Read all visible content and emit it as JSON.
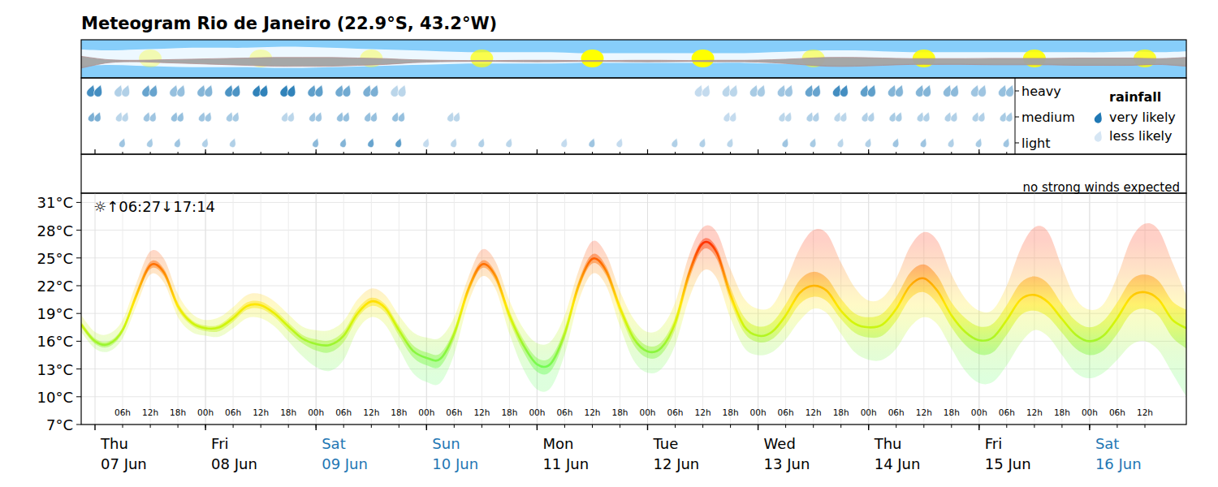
{
  "chart_data": {
    "type": "meteogram",
    "title": "Meteogram Rio de Janeiro (22.9°S, 43.2°W)",
    "xlim": [
      -3,
      237
    ],
    "xticks": [
      {
        "value": 6,
        "label": "06h"
      },
      {
        "value": 12,
        "label": "12h"
      },
      {
        "value": 18,
        "label": "18h"
      },
      {
        "value": 24,
        "label": "00h"
      },
      {
        "value": 30,
        "label": "06h"
      },
      {
        "value": 36,
        "label": "12h"
      },
      {
        "value": 42,
        "label": "18h"
      },
      {
        "value": 48,
        "label": "00h"
      },
      {
        "value": 54,
        "label": "06h"
      },
      {
        "value": 60,
        "label": "12h"
      },
      {
        "value": 66,
        "label": "18h"
      },
      {
        "value": 72,
        "label": "00h"
      },
      {
        "value": 78,
        "label": "06h"
      },
      {
        "value": 84,
        "label": "12h"
      },
      {
        "value": 90,
        "label": "18h"
      },
      {
        "value": 96,
        "label": "00h"
      },
      {
        "value": 102,
        "label": "06h"
      },
      {
        "value": 108,
        "label": "12h"
      },
      {
        "value": 114,
        "label": "18h"
      },
      {
        "value": 120,
        "label": "00h"
      },
      {
        "value": 126,
        "label": "06h"
      },
      {
        "value": 132,
        "label": "12h"
      },
      {
        "value": 138,
        "label": "18h"
      },
      {
        "value": 144,
        "label": "00h"
      },
      {
        "value": 150,
        "label": "06h"
      },
      {
        "value": 156,
        "label": "12h"
      },
      {
        "value": 162,
        "label": "18h"
      },
      {
        "value": 168,
        "label": "00h"
      },
      {
        "value": 174,
        "label": "06h"
      },
      {
        "value": 180,
        "label": "12h"
      },
      {
        "value": 186,
        "label": "18h"
      },
      {
        "value": 192,
        "label": "00h"
      },
      {
        "value": 198,
        "label": "06h"
      },
      {
        "value": 204,
        "label": "12h"
      },
      {
        "value": 210,
        "label": "18h"
      },
      {
        "value": 216,
        "label": "00h"
      },
      {
        "value": 222,
        "label": "06h"
      },
      {
        "value": 228,
        "label": "12h"
      }
    ],
    "days": [
      {
        "value": 0,
        "weekday": "Thu",
        "date": "07 Jun",
        "color": "#000000"
      },
      {
        "value": 24,
        "weekday": "Fri",
        "date": "08 Jun",
        "color": "#000000"
      },
      {
        "value": 48,
        "weekday": "Sat",
        "date": "09 Jun",
        "color": "#1f77b4"
      },
      {
        "value": 72,
        "weekday": "Sun",
        "date": "10 Jun",
        "color": "#1f77b4"
      },
      {
        "value": 96,
        "weekday": "Mon",
        "date": "11 Jun",
        "color": "#000000"
      },
      {
        "value": 120,
        "weekday": "Tue",
        "date": "12 Jun",
        "color": "#000000"
      },
      {
        "value": 144,
        "weekday": "Wed",
        "date": "13 Jun",
        "color": "#000000"
      },
      {
        "value": 168,
        "weekday": "Thu",
        "date": "14 Jun",
        "color": "#000000"
      },
      {
        "value": 192,
        "weekday": "Fri",
        "date": "15 Jun",
        "color": "#000000"
      },
      {
        "value": 216,
        "weekday": "Sat",
        "date": "16 Jun",
        "color": "#1f77b4"
      }
    ],
    "clouds": {
      "sky_color": "#87cefa",
      "cloud_color": "#ffffff",
      "low_cloud_color": "#a3a3a3",
      "x": [
        -3,
        3,
        9,
        15,
        21,
        27,
        33,
        39,
        45,
        51,
        57,
        63,
        69,
        75,
        81,
        87,
        93,
        99,
        105,
        111,
        117,
        123,
        129,
        135,
        141,
        147,
        153,
        159,
        165,
        171,
        177,
        183,
        189,
        195,
        201,
        207,
        213,
        219,
        225,
        231,
        237
      ],
      "cloud_cover": [
        0.5,
        0.45,
        0.5,
        0.55,
        0.6,
        0.6,
        0.6,
        0.65,
        0.65,
        0.6,
        0.55,
        0.5,
        0.45,
        0.4,
        0.35,
        0.35,
        0.35,
        0.35,
        0.3,
        0.3,
        0.3,
        0.3,
        0.3,
        0.3,
        0.3,
        0.35,
        0.4,
        0.45,
        0.45,
        0.4,
        0.35,
        0.35,
        0.35,
        0.35,
        0.35,
        0.35,
        0.35,
        0.35,
        0.4,
        0.35,
        0.4
      ],
      "low_cloud": [
        0.4,
        0.1,
        0.05,
        0.1,
        0.15,
        0.2,
        0.25,
        0.3,
        0.3,
        0.3,
        0.25,
        0.2,
        0.1,
        0.05,
        0.03,
        0.03,
        0.05,
        0.05,
        0.03,
        0.03,
        0.05,
        0.05,
        0.03,
        0.05,
        0.05,
        0.1,
        0.2,
        0.3,
        0.3,
        0.25,
        0.2,
        0.2,
        0.2,
        0.22,
        0.22,
        0.22,
        0.25,
        0.25,
        0.25,
        0.2,
        0.3
      ],
      "sun": {
        "color": "#ffff00",
        "x": [
          12,
          36,
          60,
          84,
          108,
          132,
          156,
          180,
          204,
          228
        ],
        "visibility": [
          0.3,
          0.3,
          0.35,
          0.7,
          1,
          1,
          0.5,
          0.9,
          0.9,
          0.8
        ]
      }
    },
    "rainfall": {
      "title": "rainfall",
      "x": [
        0,
        6,
        12,
        18,
        24,
        30,
        36,
        42,
        48,
        54,
        60,
        66,
        72,
        78,
        84,
        90,
        96,
        102,
        108,
        114,
        120,
        126,
        132,
        138,
        144,
        150,
        156,
        162,
        168,
        174,
        180,
        186,
        192,
        198
      ],
      "rows": [
        {
          "name": "heavy",
          "values": [
            0.8,
            0.2,
            0.6,
            0.35,
            0.45,
            0.75,
            0.9,
            0.9,
            0.65,
            0.55,
            0.5,
            0.15,
            0,
            0,
            0,
            0,
            0,
            0,
            0,
            0,
            0,
            0,
            0.1,
            0.15,
            0.25,
            0.3,
            0.6,
            0.8,
            0.65,
            0.45,
            0.45,
            0.4,
            0.3,
            0.35
          ]
        },
        {
          "name": "medium",
          "values": [
            0.5,
            0.15,
            0.3,
            0.35,
            0.3,
            0.25,
            0,
            0.15,
            0.3,
            0.35,
            0.35,
            0.35,
            0,
            0.15,
            0,
            0,
            0,
            0,
            0,
            0,
            0,
            0,
            0,
            0.1,
            0,
            0.15,
            0.2,
            0.15,
            0.2,
            0.25,
            0.2,
            0.2,
            0.2,
            0.25
          ]
        },
        {
          "name": "light",
          "values": [
            0,
            0.3,
            0.25,
            0.3,
            0.2,
            0.2,
            0,
            0,
            0.4,
            0.45,
            0.6,
            0.65,
            0.1,
            0.15,
            0.2,
            0.15,
            0,
            0.1,
            0.3,
            0.1,
            0,
            0.2,
            0.2,
            0.15,
            0,
            0.3,
            0.25,
            0.15,
            0.2,
            0.3,
            0.3,
            0.2,
            0.25,
            0.3
          ]
        }
      ],
      "legend": [
        {
          "label": "very likely",
          "color": "#1f78b4"
        },
        {
          "label": "less likely",
          "color": "#d6e6f4"
        }
      ]
    },
    "wind": {
      "text": "no strong winds expected"
    },
    "temperature": {
      "sun_times": "☼↑06:27↓17:14",
      "ylim": [
        7,
        32
      ],
      "yticks": [
        {
          "value": 7,
          "label": "7°C"
        },
        {
          "value": 10,
          "label": "10°C"
        },
        {
          "value": 13,
          "label": "13°C"
        },
        {
          "value": 16,
          "label": "16°C"
        },
        {
          "value": 19,
          "label": "19°C"
        },
        {
          "value": 22,
          "label": "22°C"
        },
        {
          "value": 25,
          "label": "25°C"
        },
        {
          "value": 28,
          "label": "28°C"
        },
        {
          "value": 31,
          "label": "31°C"
        }
      ],
      "grid": true,
      "color_stops": [
        {
          "value": 12,
          "color": "#66ff66"
        },
        {
          "value": 15,
          "color": "#8cf53c"
        },
        {
          "value": 18,
          "color": "#d4f50a"
        },
        {
          "value": 20,
          "color": "#ffe600"
        },
        {
          "value": 22,
          "color": "#ffb400"
        },
        {
          "value": 24,
          "color": "#ff7800"
        },
        {
          "value": 27,
          "color": "#ff2a00"
        }
      ],
      "x": [
        -3,
        0,
        3,
        6,
        9,
        12,
        15,
        18,
        21,
        24,
        27,
        30,
        33,
        36,
        39,
        42,
        45,
        48,
        51,
        54,
        57,
        60,
        63,
        66,
        69,
        72,
        75,
        78,
        81,
        84,
        87,
        90,
        93,
        96,
        99,
        102,
        105,
        108,
        111,
        114,
        117,
        120,
        123,
        126,
        129,
        132,
        135,
        138,
        141,
        144,
        147,
        150,
        153,
        156,
        159,
        162,
        165,
        168,
        171,
        174,
        177,
        180,
        183,
        186,
        189,
        192,
        195,
        198,
        201,
        204,
        207,
        210,
        213,
        216,
        219,
        222,
        225,
        228,
        231,
        234,
        237
      ],
      "values": [
        17.8,
        16.0,
        15.7,
        17.2,
        21.0,
        24.2,
        23.4,
        19.8,
        18.0,
        17.4,
        17.5,
        18.5,
        19.8,
        19.9,
        19.0,
        17.6,
        16.3,
        15.7,
        15.6,
        16.6,
        19.0,
        20.3,
        19.6,
        17.2,
        15.0,
        14.2,
        14.1,
        16.8,
        21.5,
        24.3,
        23.0,
        18.8,
        15.6,
        13.5,
        13.6,
        16.8,
        22.0,
        24.9,
        23.6,
        19.6,
        16.3,
        14.9,
        15.3,
        18.0,
        23.3,
        26.6,
        25.6,
        21.0,
        17.6,
        16.6,
        17.0,
        18.8,
        21.2,
        22.0,
        21.4,
        19.3,
        17.9,
        17.5,
        17.8,
        19.5,
        22.0,
        22.8,
        21.4,
        18.8,
        17.0,
        16.1,
        16.4,
        18.3,
        20.5,
        21.0,
        20.2,
        18.4,
        16.7,
        16.0,
        16.6,
        18.5,
        20.8,
        21.3,
        20.5,
        18.3,
        17.4
      ],
      "band_inner": {
        "low": [
          17.5,
          15.7,
          15.4,
          16.9,
          20.6,
          23.8,
          23.0,
          19.4,
          17.7,
          17.1,
          17.1,
          18.1,
          19.4,
          19.5,
          18.6,
          17.1,
          15.8,
          15.0,
          14.8,
          15.9,
          18.5,
          19.8,
          19.1,
          16.6,
          14.3,
          13.4,
          13.3,
          16.2,
          21.0,
          23.9,
          22.5,
          18.2,
          14.9,
          12.7,
          12.8,
          16.2,
          21.5,
          24.4,
          23.1,
          19.0,
          15.6,
          14.2,
          14.6,
          17.3,
          22.6,
          25.9,
          24.9,
          20.3,
          16.9,
          15.9,
          16.2,
          17.8,
          20.0,
          20.8,
          20.3,
          18.4,
          16.9,
          16.4,
          16.6,
          18.2,
          20.6,
          21.3,
          20.0,
          17.5,
          15.6,
          14.6,
          14.8,
          16.7,
          18.8,
          19.3,
          18.6,
          16.9,
          15.2,
          14.5,
          15.0,
          16.8,
          19.0,
          19.5,
          18.7,
          16.4,
          15.2
        ],
        "high": [
          18.1,
          16.3,
          16.0,
          17.5,
          21.4,
          24.6,
          23.8,
          20.2,
          18.3,
          17.7,
          17.8,
          18.9,
          20.2,
          20.3,
          19.4,
          18.0,
          16.7,
          16.2,
          16.1,
          17.1,
          19.5,
          20.7,
          20.0,
          17.7,
          15.6,
          14.8,
          14.7,
          17.3,
          21.9,
          24.7,
          23.4,
          19.3,
          16.2,
          14.2,
          14.3,
          17.4,
          22.5,
          25.4,
          24.1,
          20.1,
          16.9,
          15.5,
          15.9,
          18.6,
          23.8,
          27.0,
          26.1,
          21.8,
          18.6,
          17.6,
          18.0,
          20.0,
          22.6,
          23.5,
          22.8,
          20.6,
          19.0,
          18.6,
          19.0,
          20.8,
          23.4,
          24.3,
          23.0,
          20.2,
          18.5,
          17.6,
          17.9,
          19.9,
          22.3,
          23.0,
          22.2,
          20.0,
          18.2,
          17.5,
          18.2,
          20.2,
          22.6,
          23.2,
          22.5,
          20.3,
          19.4
        ]
      },
      "band_outer": {
        "low": [
          17.0,
          15.2,
          14.9,
          16.3,
          19.8,
          23.2,
          22.3,
          18.6,
          17.0,
          16.6,
          16.5,
          17.4,
          18.5,
          18.5,
          17.6,
          16.0,
          14.4,
          13.2,
          12.8,
          14.0,
          17.2,
          18.6,
          17.8,
          15.2,
          12.6,
          11.6,
          11.5,
          14.6,
          20.0,
          23.0,
          21.6,
          16.8,
          13.0,
          10.8,
          11.0,
          14.6,
          20.3,
          23.3,
          22.0,
          17.6,
          13.9,
          12.6,
          13.0,
          15.6,
          20.6,
          23.6,
          22.8,
          18.5,
          15.3,
          14.5,
          14.8,
          16.2,
          18.2,
          19.5,
          19.0,
          16.8,
          14.8,
          14.0,
          14.0,
          15.2,
          17.5,
          18.6,
          17.8,
          15.2,
          12.8,
          11.5,
          11.6,
          13.4,
          15.8,
          17.2,
          16.5,
          14.5,
          12.6,
          12.0,
          12.6,
          14.0,
          15.6,
          16.0,
          15.0,
          12.5,
          10.0
        ],
        "high": [
          18.8,
          17.0,
          16.8,
          18.3,
          22.3,
          25.7,
          24.9,
          21.1,
          19.0,
          18.3,
          18.6,
          19.7,
          21.0,
          21.1,
          20.3,
          18.9,
          17.6,
          17.2,
          17.2,
          18.2,
          20.5,
          21.7,
          21.0,
          18.8,
          17.0,
          16.4,
          16.4,
          18.6,
          22.8,
          25.9,
          24.6,
          20.4,
          17.4,
          15.8,
          16.0,
          18.8,
          23.6,
          26.8,
          25.4,
          21.4,
          18.4,
          17.0,
          17.5,
          20.2,
          25.3,
          28.3,
          27.8,
          23.8,
          20.6,
          19.5,
          19.8,
          22.5,
          26.0,
          28.0,
          27.6,
          24.5,
          21.8,
          20.4,
          20.7,
          22.8,
          26.2,
          27.8,
          26.8,
          23.2,
          20.6,
          19.3,
          19.4,
          22.0,
          26.0,
          28.3,
          27.8,
          24.0,
          20.6,
          19.4,
          20.0,
          23.0,
          27.0,
          28.7,
          28.0,
          24.5,
          21.0
        ]
      }
    }
  }
}
